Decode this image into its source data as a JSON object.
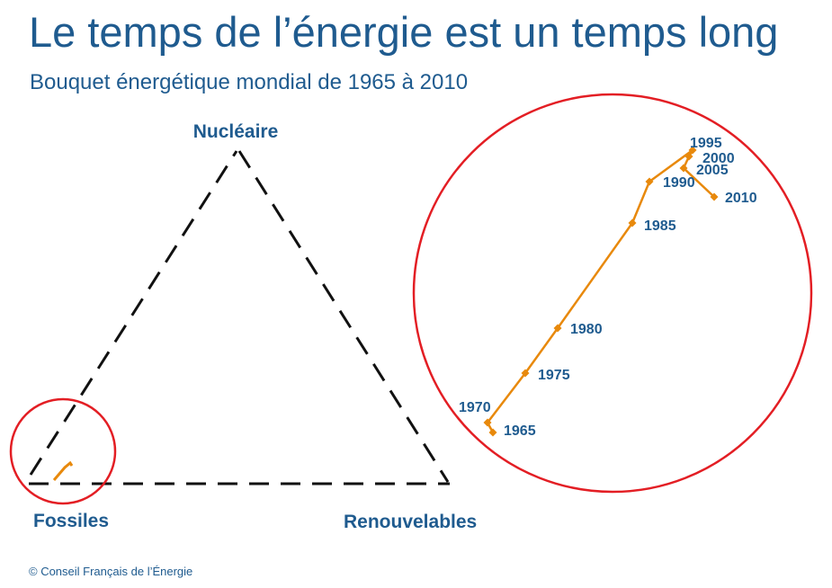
{
  "header": {
    "title": "Le temps de l’énergie est un temps long",
    "subtitle": "Bouquet énergétique mondial de 1965 à 2010"
  },
  "footer": {
    "copyright": "© Conseil Français de l’Énergie"
  },
  "colors": {
    "text": "#1f5b8f",
    "series": "#e8890c",
    "highlight_circle": "#e31e24",
    "triangle": "#111111"
  },
  "chart_data": {
    "type": "ternary-line",
    "vertices": {
      "top": "Nucléaire",
      "left": "Fossiles",
      "right": "Renouvelables"
    },
    "triangle_style": "dashed",
    "zoom": "magnified inset around the Fossiles vertex",
    "series": [
      {
        "points": [
          {
            "year": "1965"
          },
          {
            "year": "1970"
          },
          {
            "year": "1975"
          },
          {
            "year": "1980"
          },
          {
            "year": "1985"
          },
          {
            "year": "1990"
          },
          {
            "year": "1995"
          },
          {
            "year": "2000"
          },
          {
            "year": "2005"
          },
          {
            "year": "2010"
          }
        ]
      }
    ]
  }
}
